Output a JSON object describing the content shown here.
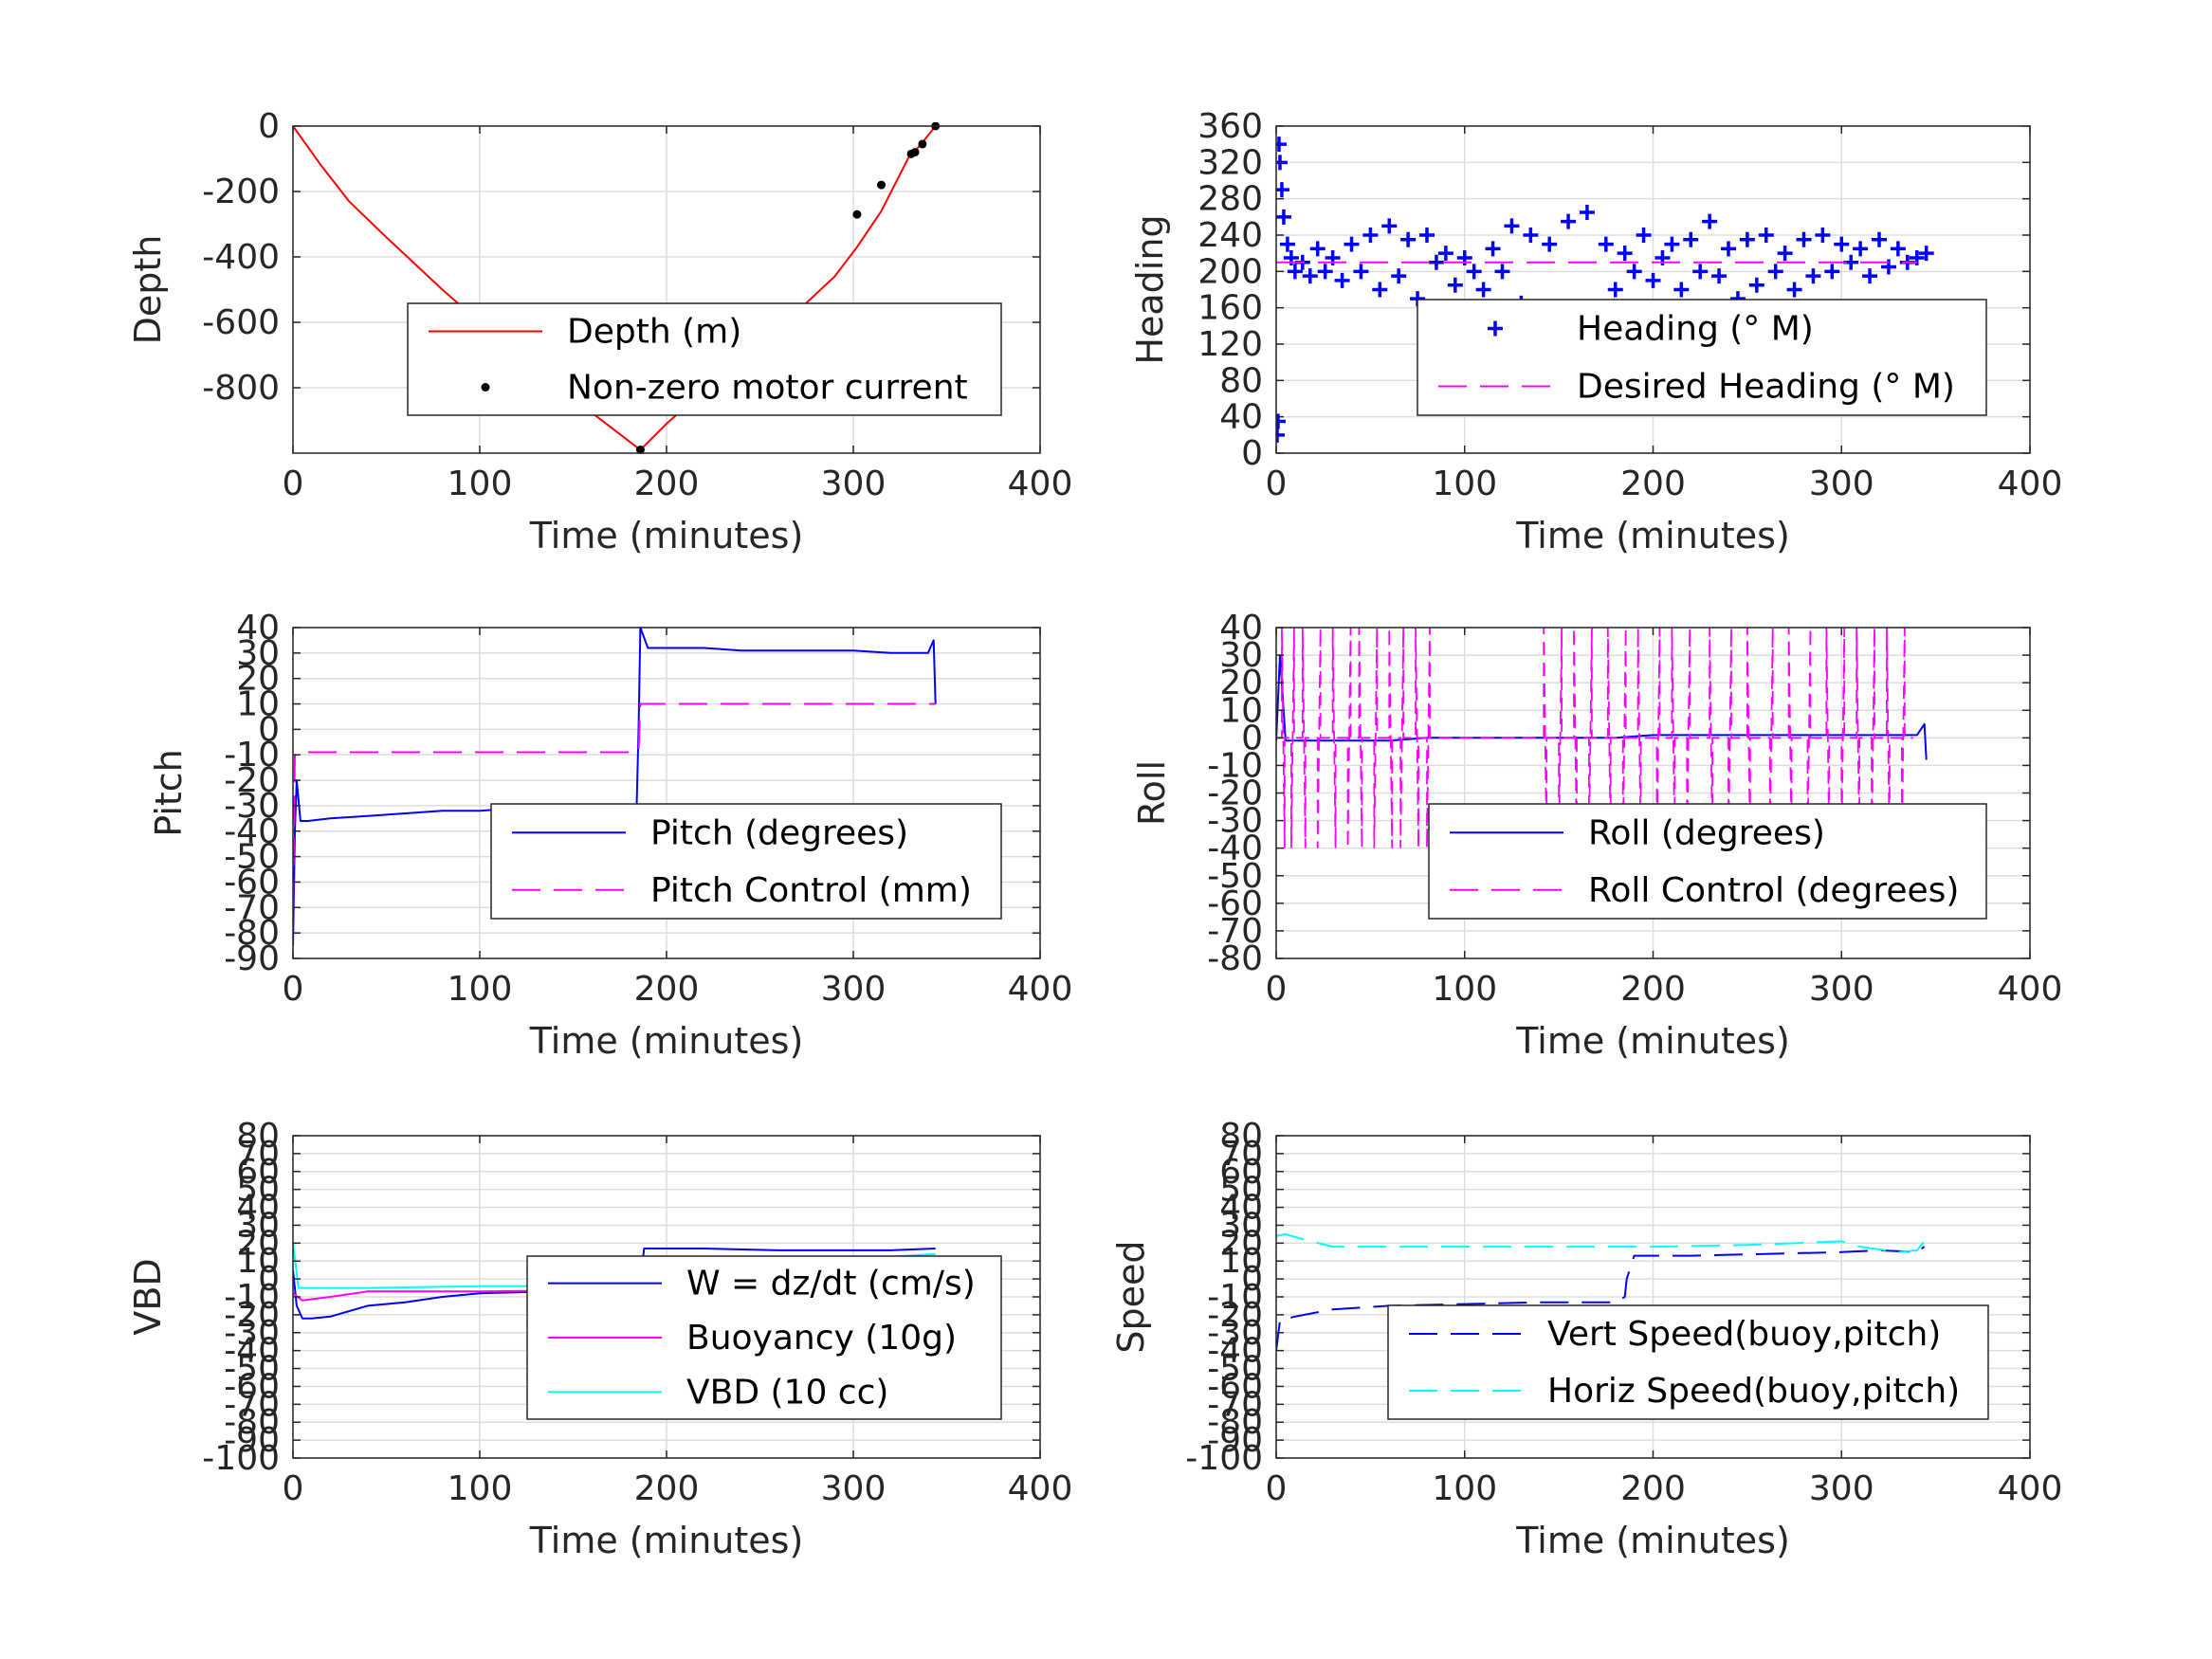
{
  "chart_data": [
    {
      "id": "depth",
      "type": "line",
      "xlabel": "Time (minutes)",
      "ylabel": "Depth",
      "xlim": [
        0,
        400
      ],
      "ylim": [
        -1000,
        0
      ],
      "xticks": [
        0,
        100,
        200,
        300,
        400
      ],
      "yticks": [
        0,
        -200,
        -400,
        -600,
        -800
      ],
      "grid": true,
      "legend": "center-right",
      "series": [
        {
          "name": "Depth (m)",
          "style": "line",
          "color": "#ff0000",
          "x": [
            0,
            15,
            30,
            50,
            80,
            110,
            140,
            170,
            186,
            200,
            230,
            260,
            290,
            302,
            315,
            331,
            334,
            337,
            344
          ],
          "y": [
            0,
            -120,
            -230,
            -340,
            -500,
            -650,
            -790,
            -920,
            -990,
            -910,
            -760,
            -620,
            -460,
            -370,
            -260,
            -80,
            -70,
            -50,
            0
          ]
        },
        {
          "name": "Non-zero motor current",
          "style": "dots",
          "color": "#000000",
          "x": [
            186,
            302,
            315,
            331,
            333,
            337,
            344
          ],
          "y": [
            -990,
            -270,
            -180,
            -85,
            -80,
            -55,
            0
          ]
        }
      ]
    },
    {
      "id": "heading",
      "type": "scatter",
      "xlabel": "Time (minutes)",
      "ylabel": "Heading",
      "xlim": [
        0,
        400
      ],
      "ylim": [
        0,
        360
      ],
      "xticks": [
        0,
        100,
        200,
        300,
        400
      ],
      "yticks": [
        0,
        40,
        80,
        120,
        160,
        200,
        240,
        280,
        320,
        360
      ],
      "grid": true,
      "legend": "bottom-right",
      "series": [
        {
          "name": "Heading (° M)",
          "style": "plus",
          "color": "#0000ff",
          "x": [
            0.5,
            1,
            1.5,
            2,
            3,
            4,
            6,
            8,
            10,
            14,
            18,
            22,
            26,
            30,
            35,
            40,
            45,
            50,
            55,
            60,
            65,
            70,
            75,
            80,
            85,
            90,
            95,
            100,
            105,
            110,
            115,
            120,
            125,
            130,
            135,
            140,
            145,
            150,
            155,
            160,
            165,
            170,
            175,
            180,
            185,
            190,
            195,
            200,
            205,
            210,
            215,
            220,
            225,
            230,
            235,
            240,
            245,
            250,
            255,
            260,
            265,
            270,
            275,
            280,
            285,
            290,
            295,
            300,
            305,
            310,
            315,
            320,
            325,
            330,
            335,
            340,
            345
          ],
          "y": [
            20,
            35,
            340,
            320,
            290,
            260,
            230,
            215,
            200,
            210,
            195,
            225,
            200,
            215,
            190,
            230,
            200,
            240,
            180,
            250,
            195,
            235,
            170,
            240,
            210,
            220,
            185,
            215,
            200,
            180,
            225,
            200,
            250,
            165,
            240,
            150,
            230,
            130,
            255,
            110,
            265,
            150,
            230,
            180,
            220,
            200,
            240,
            190,
            215,
            230,
            180,
            235,
            200,
            255,
            195,
            225,
            170,
            235,
            185,
            240,
            200,
            220,
            180,
            235,
            195,
            240,
            200,
            230,
            210,
            225,
            195,
            235,
            205,
            225,
            210,
            215,
            220
          ]
        },
        {
          "name": "Desired Heading (° M)",
          "style": "dash",
          "color": "#ff00ff",
          "x": [
            0,
            340
          ],
          "y": [
            210,
            210
          ]
        }
      ]
    },
    {
      "id": "pitch",
      "type": "line",
      "xlabel": "Time (minutes)",
      "ylabel": "Pitch",
      "xlim": [
        0,
        400
      ],
      "ylim": [
        -90,
        40
      ],
      "xticks": [
        0,
        100,
        200,
        300,
        400
      ],
      "yticks": [
        40,
        30,
        20,
        10,
        0,
        -10,
        -20,
        -30,
        -40,
        -50,
        -60,
        -70,
        -80,
        -90
      ],
      "grid": true,
      "legend": "center-right",
      "series": [
        {
          "name": "Pitch (degrees)",
          "style": "line",
          "color": "#0000ff",
          "x": [
            0,
            1,
            2,
            4,
            8,
            20,
            40,
            60,
            80,
            100,
            120,
            140,
            160,
            184,
            185,
            186,
            190,
            200,
            220,
            240,
            260,
            280,
            300,
            320,
            340,
            343,
            344
          ],
          "y": [
            -85,
            -40,
            -20,
            -36,
            -36,
            -35,
            -34,
            -33,
            -32,
            -32,
            -31,
            -31,
            -31,
            -30,
            0,
            40,
            32,
            32,
            32,
            31,
            31,
            31,
            31,
            30,
            30,
            35,
            10
          ]
        },
        {
          "name": "Pitch Control (mm)",
          "style": "dash",
          "color": "#ff00ff",
          "x": [
            0,
            1,
            3,
            185,
            186,
            190,
            344
          ],
          "y": [
            -70,
            -10,
            -9,
            -9,
            10,
            10,
            10
          ]
        }
      ]
    },
    {
      "id": "roll",
      "type": "line",
      "xlabel": "Time (minutes)",
      "ylabel": "Roll",
      "xlim": [
        0,
        400
      ],
      "ylim": [
        -80,
        40
      ],
      "xticks": [
        0,
        100,
        200,
        300,
        400
      ],
      "yticks": [
        40,
        30,
        20,
        10,
        0,
        -10,
        -20,
        -30,
        -40,
        -50,
        -60,
        -70,
        -80
      ],
      "grid": true,
      "legend": "bottom-right",
      "series": [
        {
          "name": "Roll (degrees)",
          "style": "line",
          "color": "#0000ff",
          "x": [
            0,
            2,
            5,
            10,
            20,
            30,
            40,
            50,
            60,
            80,
            100,
            120,
            140,
            160,
            180,
            200,
            220,
            240,
            260,
            280,
            300,
            320,
            340,
            344,
            345
          ],
          "y": [
            -1,
            30,
            -1,
            -1,
            -1,
            -1,
            -1,
            -1,
            -1,
            0,
            0,
            0,
            0,
            0,
            0,
            1,
            1,
            1,
            1,
            1,
            1,
            1,
            1,
            5,
            -8
          ]
        },
        {
          "name": "Roll Control (degrees)",
          "style": "dash",
          "color": "#ff00ff",
          "spikes_x": [
            3,
            8,
            14,
            22,
            30,
            38,
            44,
            52,
            60,
            66,
            74,
            80,
            142,
            150,
            158,
            166,
            176,
            184,
            192,
            202,
            210,
            218,
            230,
            240,
            250,
            262,
            272,
            282,
            292,
            300,
            308,
            316,
            324,
            332
          ],
          "spike_amplitude": 40,
          "baseline": 0
        }
      ]
    },
    {
      "id": "vbd",
      "type": "line",
      "xlabel": "Time (minutes)",
      "ylabel": "VBD",
      "xlim": [
        0,
        400
      ],
      "ylim": [
        -100,
        80
      ],
      "xticks": [
        0,
        100,
        200,
        300,
        400
      ],
      "yticks": [
        80,
        70,
        60,
        50,
        40,
        30,
        20,
        10,
        0,
        -10,
        -20,
        -30,
        -40,
        -50,
        -60,
        -70,
        -80,
        -90,
        -100
      ],
      "ytick_labels": [
        "80",
        "70",
        "60",
        "50",
        "40",
        "30",
        "20",
        "10",
        "0",
        "-10",
        "-20",
        "-30",
        "-40",
        "-50",
        "-60",
        "-70",
        "-80",
        "-90",
        "-100"
      ],
      "grid": true,
      "legend": "center-right",
      "series": [
        {
          "name": "W = dz/dt (cm/s)",
          "style": "line",
          "color": "#0000ff",
          "x": [
            0,
            2,
            5,
            10,
            20,
            40,
            60,
            80,
            100,
            140,
            185,
            186,
            188,
            200,
            220,
            260,
            300,
            320,
            344
          ],
          "y": [
            5,
            -15,
            -22,
            -22,
            -21,
            -15,
            -13,
            -10,
            -8,
            -7,
            -7,
            0,
            17,
            17,
            17,
            16,
            16,
            16,
            17
          ]
        },
        {
          "name": "Buoyancy (10g)",
          "style": "line",
          "color": "#ff00ff",
          "x": [
            0,
            5,
            20,
            40,
            100,
            185,
            186,
            200,
            260,
            300,
            320,
            344
          ],
          "y": [
            -8,
            -12,
            -10,
            -7,
            -7,
            -6,
            3,
            9,
            10,
            9,
            7,
            9
          ]
        },
        {
          "name": "VBD (10 cc)",
          "style": "line",
          "color": "#00ffff",
          "x": [
            0,
            3,
            40,
            100,
            185,
            186,
            220,
            300,
            344
          ],
          "y": [
            20,
            -5,
            -5,
            -4,
            -4,
            8,
            9,
            11,
            14
          ]
        }
      ]
    },
    {
      "id": "speed",
      "type": "line",
      "xlabel": "Time (minutes)",
      "ylabel": "Speed",
      "xlim": [
        0,
        400
      ],
      "ylim": [
        -100,
        80
      ],
      "xticks": [
        0,
        100,
        200,
        300,
        400
      ],
      "yticks": [
        80,
        70,
        60,
        50,
        40,
        30,
        20,
        10,
        0,
        -10,
        -20,
        -30,
        -40,
        -50,
        -60,
        -70,
        -80,
        -90,
        -100
      ],
      "ytick_labels": [
        "80",
        "70",
        "60",
        "50",
        "40",
        "30",
        "20",
        "10",
        "0",
        "-10",
        "-20",
        "-30",
        "-40",
        "-50",
        "-60",
        "-70",
        "-80",
        "-90",
        "-100"
      ],
      "grid": true,
      "legend": "bottom-right",
      "series": [
        {
          "name": "Vert Speed(buoy,pitch)",
          "style": "dash",
          "color": "#0000ff",
          "x": [
            0,
            2,
            10,
            30,
            60,
            100,
            140,
            180,
            185,
            186,
            190,
            220,
            260,
            300,
            320,
            340,
            344
          ],
          "y": [
            -40,
            -23,
            -21,
            -17,
            -15,
            -14,
            -13,
            -13,
            -10,
            0,
            13,
            13,
            14,
            15,
            16,
            15,
            18
          ]
        },
        {
          "name": "Horiz Speed(buoy,pitch)",
          "style": "dash",
          "color": "#00ffff",
          "x": [
            0,
            5,
            15,
            30,
            60,
            100,
            160,
            200,
            250,
            300,
            310,
            330,
            340,
            344
          ],
          "y": [
            24,
            25,
            22,
            18,
            18,
            18,
            18,
            18,
            19,
            21,
            18,
            15,
            16,
            21
          ]
        }
      ]
    }
  ]
}
